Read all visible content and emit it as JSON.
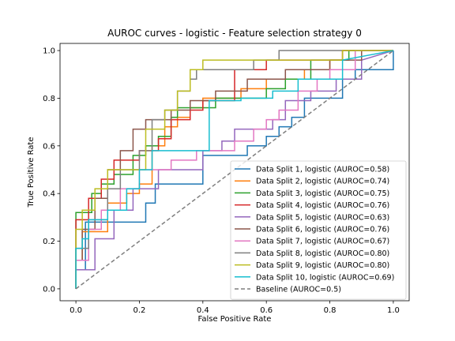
{
  "chart_data": {
    "type": "line",
    "title": "AUROC curves - logistic - Feature selection strategy 0",
    "xlabel": "False Positive Rate",
    "ylabel": "True Positive Rate",
    "xlim": [
      -0.05,
      1.05
    ],
    "ylim": [
      -0.05,
      1.03
    ],
    "xticks": [
      0.0,
      0.2,
      0.4,
      0.6,
      0.8,
      1.0
    ],
    "yticks": [
      0.0,
      0.2,
      0.4,
      0.6,
      0.8,
      1.0
    ],
    "xtick_labels": [
      "0.0",
      "0.2",
      "0.4",
      "0.6",
      "0.8",
      "1.0"
    ],
    "ytick_labels": [
      "0.0",
      "0.2",
      "0.4",
      "0.6",
      "0.8",
      "1.0"
    ],
    "grid": false,
    "legend_position": "lower-right",
    "series": [
      {
        "name": "Data Split 1, logistic (AUROC=0.58)",
        "color": "#1f77b4",
        "x": [
          0,
          0,
          0.03,
          0.03,
          0.22,
          0.22,
          0.25,
          0.25,
          0.4,
          0.4,
          0.54,
          0.54,
          0.6,
          0.6,
          0.64,
          0.64,
          0.68,
          0.68,
          0.72,
          0.72,
          0.84,
          0.84,
          0.88,
          0.88,
          1.0,
          1.0
        ],
        "y": [
          0,
          0.08,
          0.08,
          0.28,
          0.28,
          0.36,
          0.36,
          0.44,
          0.44,
          0.56,
          0.56,
          0.6,
          0.6,
          0.64,
          0.64,
          0.68,
          0.68,
          0.72,
          0.72,
          0.8,
          0.8,
          0.88,
          0.88,
          0.92,
          0.92,
          1.0
        ]
      },
      {
        "name": "Data Split 2, logistic (AUROC=0.74)",
        "color": "#ff7f0e",
        "x": [
          0,
          0,
          0.02,
          0.02,
          0.1,
          0.1,
          0.16,
          0.16,
          0.2,
          0.2,
          0.24,
          0.24,
          0.28,
          0.28,
          0.32,
          0.32,
          0.36,
          0.36,
          0.4,
          0.4,
          0.52,
          0.52,
          0.6,
          0.6,
          0.72,
          0.72,
          0.8,
          0.8,
          0.84,
          0.84,
          1.0
        ],
        "y": [
          0,
          0.12,
          0.12,
          0.24,
          0.24,
          0.36,
          0.36,
          0.4,
          0.4,
          0.44,
          0.44,
          0.6,
          0.6,
          0.68,
          0.68,
          0.72,
          0.72,
          0.76,
          0.76,
          0.8,
          0.8,
          0.84,
          0.84,
          0.88,
          0.88,
          0.92,
          0.92,
          0.96,
          0.96,
          1.0,
          1.0
        ]
      },
      {
        "name": "Data Split 3, logistic (AUROC=0.75)",
        "color": "#2ca02c",
        "x": [
          0,
          0,
          0.05,
          0.05,
          0.08,
          0.08,
          0.12,
          0.12,
          0.18,
          0.18,
          0.22,
          0.22,
          0.26,
          0.26,
          0.3,
          0.3,
          0.32,
          0.32,
          0.44,
          0.44,
          0.6,
          0.6,
          0.66,
          0.66,
          0.74,
          0.74,
          0.86,
          0.86,
          1.0
        ],
        "y": [
          0,
          0.32,
          0.32,
          0.4,
          0.4,
          0.44,
          0.44,
          0.48,
          0.48,
          0.56,
          0.56,
          0.6,
          0.6,
          0.64,
          0.64,
          0.72,
          0.72,
          0.76,
          0.76,
          0.8,
          0.8,
          0.84,
          0.84,
          0.88,
          0.88,
          0.96,
          0.96,
          1.0,
          1.0
        ]
      },
      {
        "name": "Data Split 4, logistic (AUROC=0.76)",
        "color": "#d62728",
        "x": [
          0,
          0,
          0.04,
          0.04,
          0.08,
          0.08,
          0.12,
          0.12,
          0.2,
          0.2,
          0.26,
          0.26,
          0.3,
          0.3,
          0.36,
          0.36,
          0.4,
          0.4,
          0.5,
          0.5,
          0.6,
          0.6,
          0.7,
          0.7,
          0.84,
          0.84,
          0.9,
          0.9,
          1.0
        ],
        "y": [
          0,
          0.29,
          0.29,
          0.38,
          0.38,
          0.46,
          0.46,
          0.54,
          0.54,
          0.58,
          0.58,
          0.63,
          0.63,
          0.71,
          0.71,
          0.75,
          0.75,
          0.79,
          0.79,
          0.92,
          0.92,
          0.96,
          0.96,
          0.96,
          0.96,
          1.0,
          1.0,
          1.0,
          1.0
        ]
      },
      {
        "name": "Data Split 5, logistic (AUROC=0.63)",
        "color": "#9467bd",
        "x": [
          0,
          0,
          0.06,
          0.06,
          0.12,
          0.12,
          0.18,
          0.18,
          0.26,
          0.26,
          0.4,
          0.4,
          0.46,
          0.46,
          0.5,
          0.5,
          0.62,
          0.62,
          0.66,
          0.66,
          0.74,
          0.74,
          0.82,
          0.82,
          0.9,
          0.9,
          1.0
        ],
        "y": [
          0,
          0.08,
          0.08,
          0.21,
          0.21,
          0.33,
          0.33,
          0.42,
          0.42,
          0.5,
          0.5,
          0.58,
          0.58,
          0.62,
          0.62,
          0.67,
          0.67,
          0.71,
          0.71,
          0.79,
          0.79,
          0.83,
          0.83,
          0.88,
          0.88,
          0.96,
          1.0
        ]
      },
      {
        "name": "Data Split 6, logistic (AUROC=0.76)",
        "color": "#8c564b",
        "x": [
          0,
          0,
          0.02,
          0.02,
          0.06,
          0.06,
          0.1,
          0.1,
          0.14,
          0.14,
          0.18,
          0.18,
          0.22,
          0.22,
          0.26,
          0.26,
          0.3,
          0.3,
          0.36,
          0.36,
          0.44,
          0.44,
          0.54,
          0.54,
          0.66,
          0.66,
          0.8,
          0.8,
          0.9,
          0.9,
          1.0
        ],
        "y": [
          0,
          0.12,
          0.12,
          0.25,
          0.25,
          0.38,
          0.38,
          0.5,
          0.5,
          0.58,
          0.58,
          0.67,
          0.67,
          0.71,
          0.71,
          0.71,
          0.71,
          0.75,
          0.75,
          0.79,
          0.79,
          0.83,
          0.83,
          0.88,
          0.88,
          0.92,
          0.92,
          0.96,
          0.96,
          1.0,
          1.0
        ]
      },
      {
        "name": "Data Split 7, logistic (AUROC=0.67)",
        "color": "#e377c2",
        "x": [
          0,
          0,
          0.04,
          0.04,
          0.08,
          0.08,
          0.14,
          0.14,
          0.2,
          0.2,
          0.3,
          0.3,
          0.38,
          0.38,
          0.5,
          0.5,
          0.56,
          0.56,
          0.6,
          0.6,
          0.64,
          0.64,
          0.7,
          0.7,
          0.76,
          0.76,
          0.8,
          0.8,
          0.88,
          0.88,
          1.0
        ],
        "y": [
          0,
          0.12,
          0.12,
          0.25,
          0.25,
          0.33,
          0.33,
          0.42,
          0.42,
          0.5,
          0.5,
          0.54,
          0.54,
          0.58,
          0.58,
          0.62,
          0.62,
          0.67,
          0.67,
          0.71,
          0.71,
          0.75,
          0.75,
          0.83,
          0.83,
          0.88,
          0.88,
          0.92,
          0.92,
          1.0,
          1.0
        ]
      },
      {
        "name": "Data Split 8, logistic (AUROC=0.80)",
        "color": "#7f7f7f",
        "x": [
          0,
          0,
          0.04,
          0.04,
          0.1,
          0.1,
          0.14,
          0.14,
          0.2,
          0.2,
          0.24,
          0.24,
          0.28,
          0.28,
          0.32,
          0.32,
          0.36,
          0.36,
          0.38,
          0.38,
          0.44,
          0.44,
          0.56,
          0.56,
          0.64,
          0.64,
          0.76,
          0.76,
          0.86,
          0.86,
          1.0
        ],
        "y": [
          0,
          0.17,
          0.17,
          0.29,
          0.29,
          0.42,
          0.42,
          0.5,
          0.5,
          0.58,
          0.58,
          0.71,
          0.71,
          0.75,
          0.75,
          0.83,
          0.83,
          0.88,
          0.88,
          0.92,
          0.92,
          0.92,
          0.92,
          0.96,
          0.96,
          1.0,
          1.0,
          1.0,
          1.0,
          1.0,
          1.0
        ]
      },
      {
        "name": "Data Split 9, logistic (AUROC=0.80)",
        "color": "#bcbd22",
        "x": [
          0,
          0,
          0.02,
          0.02,
          0.06,
          0.06,
          0.1,
          0.1,
          0.14,
          0.14,
          0.22,
          0.22,
          0.28,
          0.28,
          0.32,
          0.32,
          0.36,
          0.36,
          0.4,
          0.4,
          0.5,
          0.5,
          0.7,
          0.7,
          0.84,
          0.84,
          0.92,
          0.92,
          1.0
        ],
        "y": [
          0,
          0.25,
          0.25,
          0.33,
          0.33,
          0.42,
          0.42,
          0.5,
          0.5,
          0.5,
          0.5,
          0.67,
          0.67,
          0.75,
          0.75,
          0.83,
          0.83,
          0.92,
          0.92,
          0.96,
          0.96,
          0.96,
          0.96,
          0.96,
          0.96,
          1.0,
          1.0,
          1.0,
          1.0
        ]
      },
      {
        "name": "Data Split 10, logistic (AUROC=0.69)",
        "color": "#17becf",
        "x": [
          0,
          0,
          0.02,
          0.02,
          0.04,
          0.04,
          0.1,
          0.1,
          0.16,
          0.16,
          0.2,
          0.2,
          0.24,
          0.24,
          0.42,
          0.42,
          0.52,
          0.52,
          0.62,
          0.62,
          0.7,
          0.7,
          0.84,
          0.84,
          1.0
        ],
        "y": [
          0,
          0.17,
          0.17,
          0.21,
          0.21,
          0.29,
          0.29,
          0.33,
          0.33,
          0.42,
          0.42,
          0.5,
          0.5,
          0.58,
          0.58,
          0.79,
          0.79,
          0.8,
          0.8,
          0.83,
          0.83,
          0.88,
          0.88,
          0.96,
          1.0
        ]
      }
    ],
    "baseline": {
      "name": "Baseline (AUROC=0.5)",
      "color": "#7f7f7f",
      "x": [
        0,
        1
      ],
      "y": [
        0,
        1
      ]
    }
  }
}
